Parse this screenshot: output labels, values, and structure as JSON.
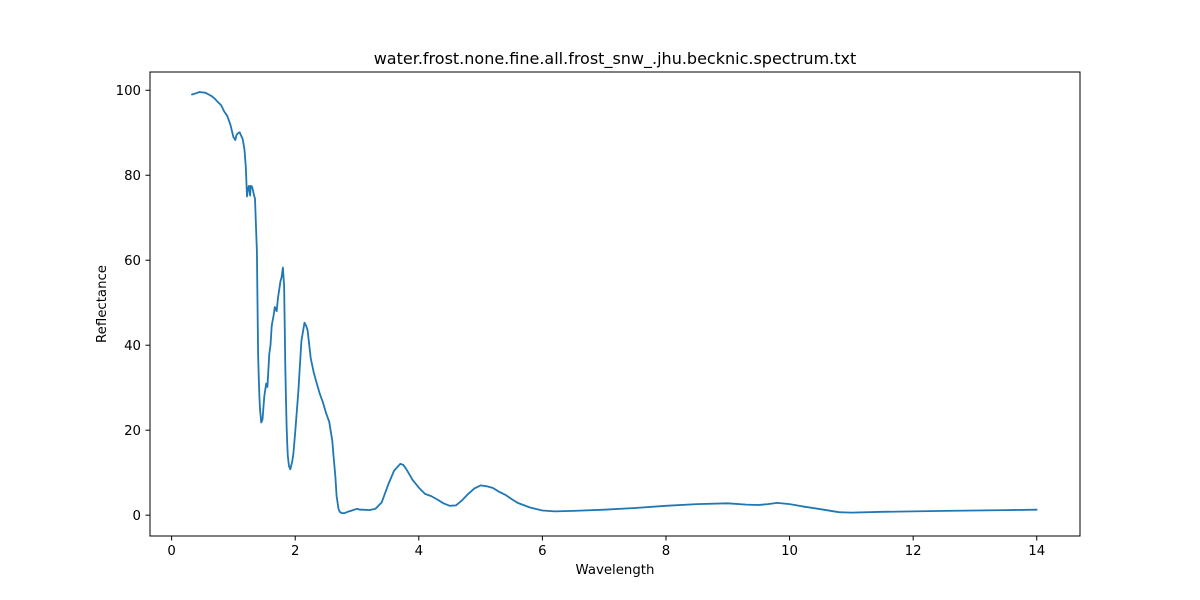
{
  "chart_data": {
    "type": "line",
    "title": "water.frost.none.fine.all.frost_snw_.jhu.becknic.spectrum.txt",
    "xlabel": "Wavelength",
    "ylabel": "Reflectance",
    "xlim": [
      -0.35,
      14.7
    ],
    "ylim": [
      -4.9,
      104.3
    ],
    "xticks": [
      0,
      2,
      4,
      6,
      8,
      10,
      12,
      14
    ],
    "yticks": [
      0,
      20,
      40,
      60,
      80,
      100
    ],
    "grid": false,
    "legend": "none",
    "series": [
      {
        "color": "#1f77b4",
        "x": [
          0.33,
          0.4,
          0.45,
          0.5,
          0.55,
          0.6,
          0.65,
          0.7,
          0.75,
          0.8,
          0.85,
          0.9,
          0.95,
          1.0,
          1.03,
          1.05,
          1.08,
          1.1,
          1.15,
          1.18,
          1.2,
          1.22,
          1.24,
          1.25,
          1.26,
          1.27,
          1.28,
          1.3,
          1.31,
          1.32,
          1.33,
          1.35,
          1.38,
          1.4,
          1.41,
          1.42,
          1.43,
          1.44,
          1.45,
          1.47,
          1.5,
          1.53,
          1.55,
          1.58,
          1.6,
          1.62,
          1.63,
          1.65,
          1.67,
          1.7,
          1.72,
          1.75,
          1.76,
          1.78,
          1.8,
          1.82,
          1.83,
          1.84,
          1.85,
          1.86,
          1.87,
          1.88,
          1.9,
          1.92,
          1.95,
          1.97,
          2.0,
          2.05,
          2.1,
          2.15,
          2.18,
          2.2,
          2.22,
          2.25,
          2.3,
          2.35,
          2.4,
          2.45,
          2.5,
          2.55,
          2.6,
          2.62,
          2.65,
          2.67,
          2.7,
          2.72,
          2.75,
          2.8,
          2.85,
          2.9,
          3.0,
          3.05,
          3.1,
          3.2,
          3.3,
          3.4,
          3.5,
          3.6,
          3.7,
          3.75,
          3.8,
          3.9,
          4.0,
          4.1,
          4.2,
          4.3,
          4.4,
          4.5,
          4.6,
          4.7,
          4.8,
          4.9,
          5.0,
          5.1,
          5.2,
          5.3,
          5.4,
          5.5,
          5.6,
          5.8,
          6.0,
          6.2,
          6.5,
          7.0,
          7.5,
          8.0,
          8.5,
          9.0,
          9.3,
          9.5,
          9.65,
          9.8,
          10.0,
          10.2,
          10.5,
          10.8,
          11.0,
          11.5,
          12.0,
          12.5,
          13.0,
          13.5,
          14.0
        ],
        "y": [
          99.0,
          99.3,
          99.6,
          99.5,
          99.4,
          99.0,
          98.6,
          98.0,
          97.2,
          96.5,
          95.0,
          94.0,
          92.0,
          89.0,
          88.3,
          89.5,
          90.0,
          90.1,
          88.5,
          86.0,
          82.0,
          75.0,
          77.0,
          77.5,
          77.2,
          75.2,
          77.5,
          77.3,
          76.8,
          76.2,
          75.5,
          74.5,
          62.0,
          38.0,
          32.0,
          28.0,
          25.0,
          23.5,
          21.8,
          22.5,
          28.0,
          31.0,
          30.2,
          38.0,
          40.0,
          44.5,
          45.5,
          47.0,
          49.0,
          48.0,
          51.0,
          54.0,
          55.0,
          56.0,
          58.3,
          54.0,
          45.0,
          35.0,
          28.0,
          21.0,
          17.0,
          14.0,
          11.5,
          10.8,
          12.5,
          14.5,
          19.5,
          29.0,
          41.0,
          45.3,
          44.5,
          43.5,
          41.0,
          37.0,
          33.5,
          31.0,
          28.5,
          26.5,
          24.0,
          22.0,
          17.5,
          14.0,
          9.0,
          4.5,
          1.5,
          0.8,
          0.5,
          0.5,
          0.8,
          1.0,
          1.5,
          1.3,
          1.3,
          1.2,
          1.5,
          3.0,
          7.0,
          10.5,
          12.1,
          11.8,
          10.8,
          8.3,
          6.5,
          5.0,
          4.5,
          3.7,
          2.8,
          2.2,
          2.3,
          3.5,
          5.0,
          6.3,
          7.0,
          6.8,
          6.4,
          5.5,
          4.8,
          3.8,
          2.9,
          1.8,
          1.1,
          0.9,
          1.0,
          1.3,
          1.7,
          2.2,
          2.6,
          2.8,
          2.5,
          2.4,
          2.6,
          2.9,
          2.6,
          2.1,
          1.4,
          0.7,
          0.6,
          0.8,
          0.9,
          1.0,
          1.1,
          1.2,
          1.3
        ]
      }
    ]
  }
}
